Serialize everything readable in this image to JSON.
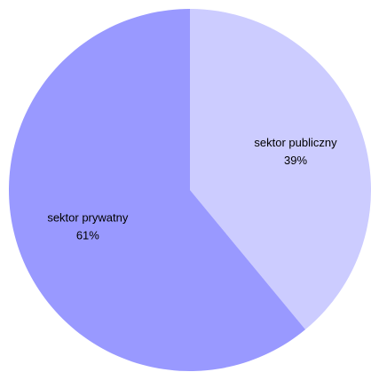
{
  "chart_data": {
    "type": "pie",
    "title": "",
    "slices": [
      {
        "label": "sektor publiczny",
        "value": 39,
        "value_label": "39%",
        "color": "#ccccff"
      },
      {
        "label": "sektor prywatny",
        "value": 61,
        "value_label": "61%",
        "color": "#9999ff"
      }
    ],
    "start_angle": "12 o'clock",
    "direction": "clockwise",
    "legend": "none"
  }
}
